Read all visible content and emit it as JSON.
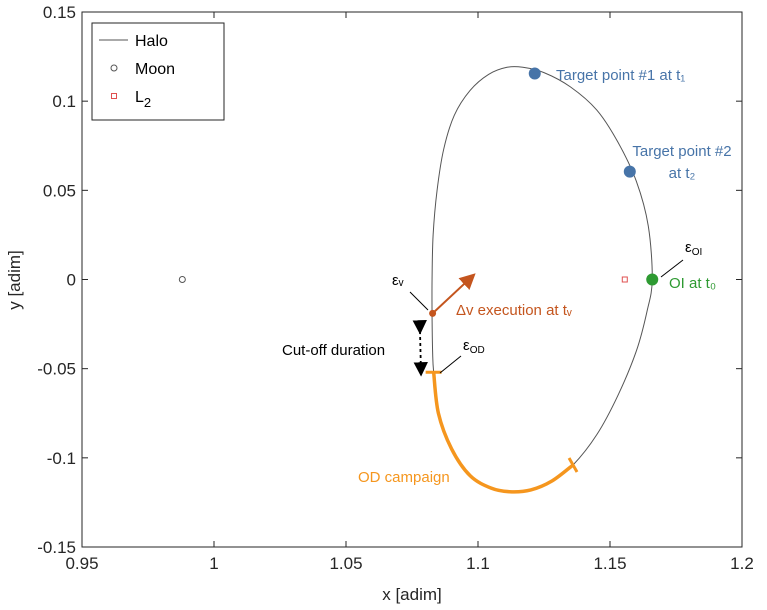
{
  "chart_data": {
    "type": "scatter",
    "xlabel": "x [adim]",
    "ylabel": "y [adim]",
    "xlim": [
      0.95,
      1.2
    ],
    "ylim": [
      -0.15,
      0.15
    ],
    "xticks": [
      0.95,
      1,
      1.05,
      1.1,
      1.15,
      1.2
    ],
    "xtick_labels": [
      "0.95",
      "1",
      "1.05",
      "1.1",
      "1.15",
      "1.2"
    ],
    "yticks": [
      -0.15,
      -0.1,
      -0.05,
      0,
      0.05,
      0.1,
      0.15
    ],
    "ytick_labels": [
      "-0.15",
      "-0.1",
      "-0.05",
      "0",
      "0.05",
      "0.1",
      "0.15"
    ],
    "grid": false,
    "legend_position": "top-left",
    "legend": [
      {
        "label": "Halo",
        "marker": "line",
        "color": "#555555"
      },
      {
        "label": "Moon",
        "marker": "circle",
        "color": "#555555"
      },
      {
        "label": "L",
        "sub": "2",
        "marker": "square",
        "color": "#e05050"
      }
    ],
    "halo": {
      "color": "#555555",
      "x": [
        1.166,
        1.1645,
        1.16,
        1.153,
        1.145,
        1.135,
        1.125,
        1.117,
        1.111,
        1.104,
        1.097,
        1.091,
        1.087,
        1.0845,
        1.083,
        1.0826,
        1.0826,
        1.0828,
        1.0832,
        1.085,
        1.09,
        1.097,
        1.105,
        1.112,
        1.12,
        1.128,
        1.136,
        1.145,
        1.153,
        1.16,
        1.164,
        1.166
      ],
      "y": [
        0.0,
        0.03,
        0.055,
        0.077,
        0.095,
        0.108,
        0.116,
        0.119,
        0.119,
        0.115,
        0.106,
        0.092,
        0.073,
        0.05,
        0.025,
        0.0,
        -0.02,
        -0.04,
        -0.052,
        -0.075,
        -0.095,
        -0.11,
        -0.117,
        -0.119,
        -0.118,
        -0.113,
        -0.104,
        -0.087,
        -0.065,
        -0.04,
        -0.018,
        0.0
      ]
    },
    "moon": {
      "x": 0.988,
      "y": 0.0,
      "color": "#555555"
    },
    "l2": {
      "x": 1.1556,
      "y": 0.0,
      "color": "#e05050"
    },
    "od_campaign": {
      "color": "#f5961e",
      "x": [
        1.0832,
        1.085,
        1.09,
        1.097,
        1.105,
        1.112,
        1.12,
        1.128,
        1.136
      ],
      "y": [
        -0.052,
        -0.075,
        -0.095,
        -0.11,
        -0.117,
        -0.119,
        -0.118,
        -0.113,
        -0.104
      ],
      "label": "OD campaign"
    },
    "points": [
      {
        "name": "target1",
        "x": 1.1215,
        "y": 0.1155,
        "color": "#4774a8",
        "label": "Target point #1 at t₁"
      },
      {
        "name": "target2",
        "x": 1.1575,
        "y": 0.0605,
        "color": "#4774a8",
        "label1": "Target point #2",
        "label2": "at t₂"
      },
      {
        "name": "oi",
        "x": 1.166,
        "y": 0.0,
        "color": "#2e9a32",
        "label": "OI at t₀"
      },
      {
        "name": "dv",
        "x": 1.0828,
        "y": -0.019,
        "color": "#c4551e",
        "label": "Δv execution at tᵥ"
      }
    ],
    "dv_arrow": {
      "x1": 1.0828,
      "y1": -0.019,
      "x2": 1.098,
      "y2": 0.002,
      "color": "#c4551e"
    },
    "annotations": {
      "eps_v": "εᵥ",
      "eps_oi": "ε",
      "eps_oi_sub": "OI",
      "eps_od": "ε",
      "eps_od_sub": "OD",
      "cutoff": "Cut-off duration"
    }
  }
}
